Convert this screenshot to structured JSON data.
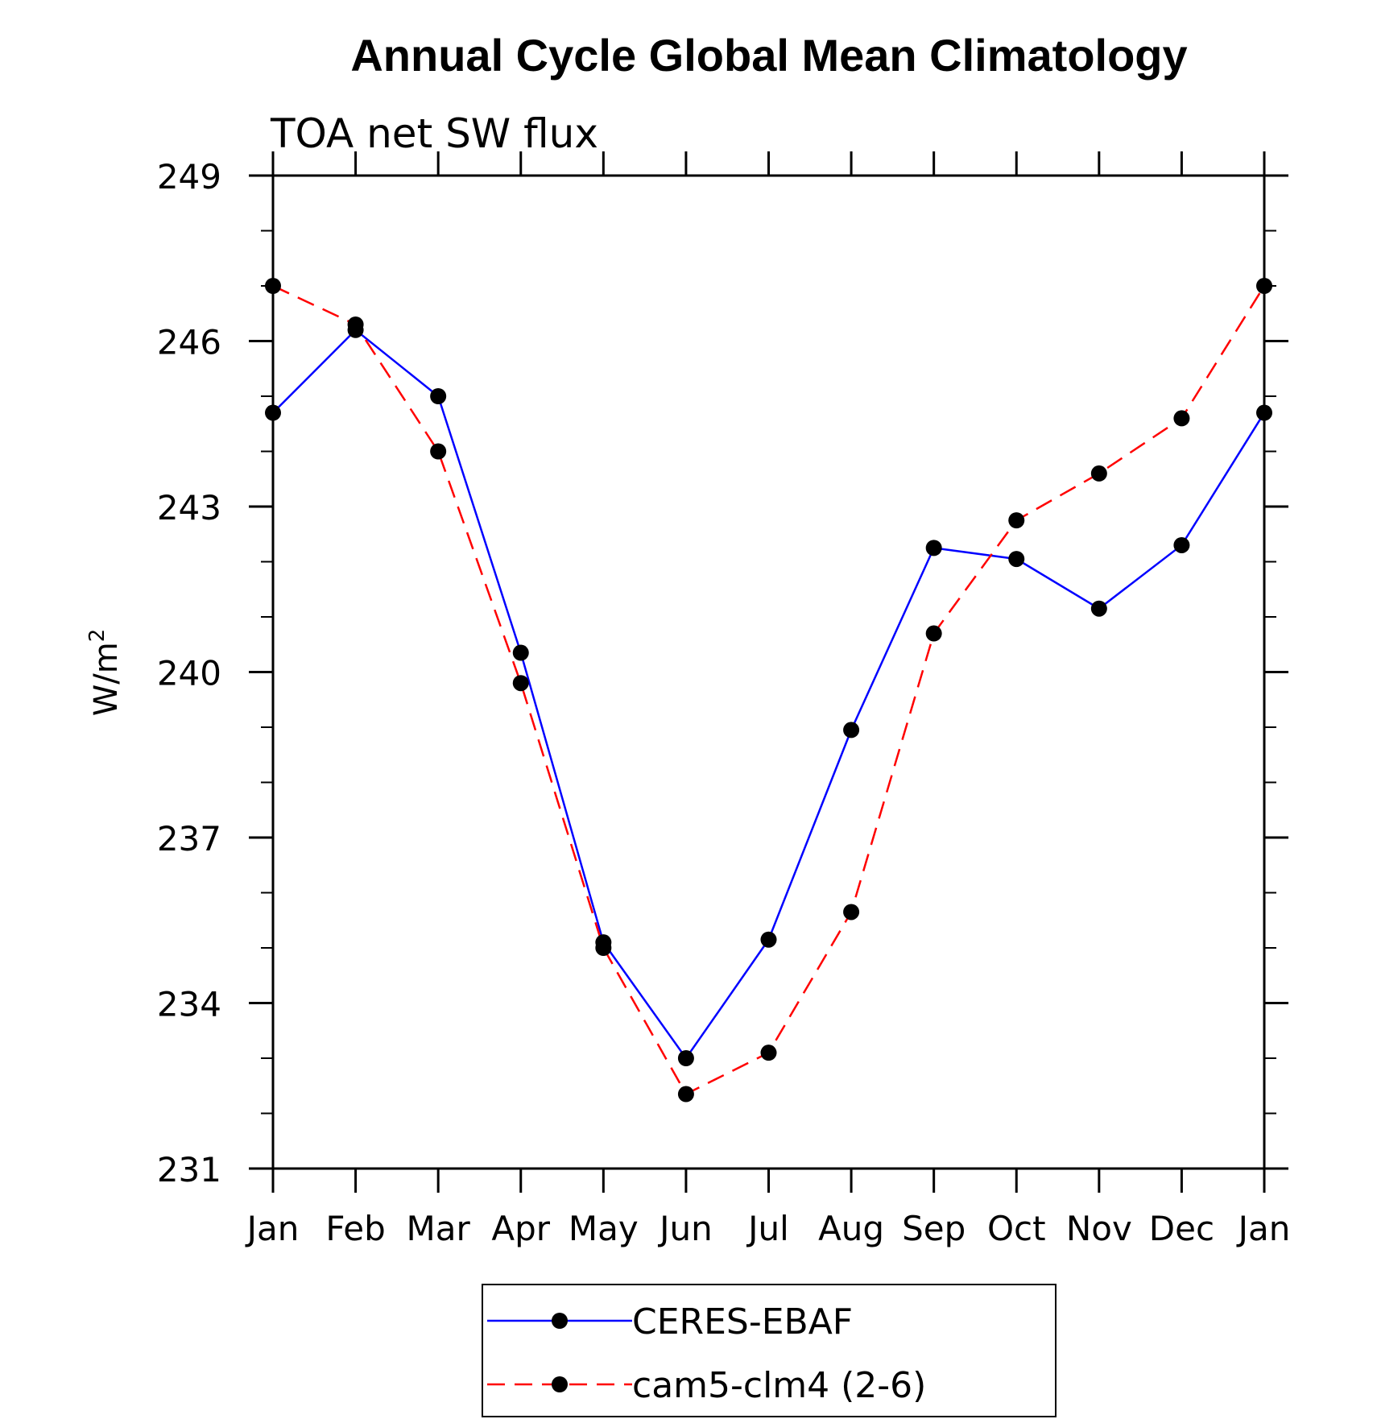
{
  "chart_data": {
    "type": "line",
    "title": "Annual Cycle Global Mean Climatology",
    "subtitle": "TOA net SW flux",
    "ylabel": "W/m",
    "ylabel_sup": "2",
    "xlabel": "",
    "categories": [
      "Jan",
      "Feb",
      "Mar",
      "Apr",
      "May",
      "Jun",
      "Jul",
      "Aug",
      "Sep",
      "Oct",
      "Nov",
      "Dec",
      "Jan"
    ],
    "ylim": [
      231,
      249
    ],
    "yticks": [
      "231",
      "234",
      "237",
      "240",
      "243",
      "246",
      "249"
    ],
    "grid": false,
    "legend_position": "bottom",
    "series": [
      {
        "name": "CERES-EBAF",
        "color": "#0000ff",
        "dash": "solid",
        "marker": "circle",
        "values": [
          244.7,
          246.2,
          245.0,
          240.35,
          235.1,
          233.0,
          235.15,
          238.95,
          242.25,
          242.05,
          241.15,
          242.3,
          244.7
        ]
      },
      {
        "name": "cam5-clm4 (2-6)",
        "color": "#ff0000",
        "dash": "dashed",
        "marker": "circle",
        "values": [
          247.0,
          246.3,
          244.0,
          239.8,
          235.0,
          232.35,
          233.1,
          235.65,
          240.7,
          242.75,
          243.6,
          244.6,
          247.0
        ]
      }
    ]
  }
}
